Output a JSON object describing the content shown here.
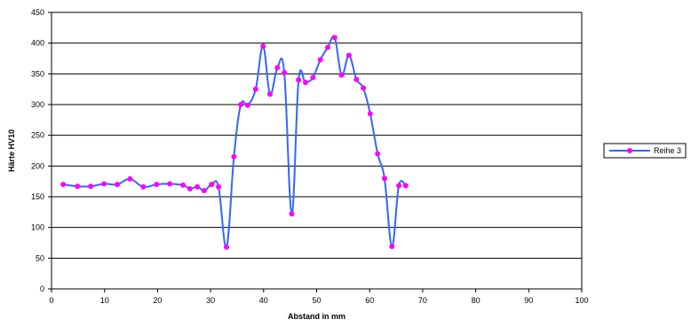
{
  "chart_data": {
    "type": "line",
    "title": "",
    "xlabel": "Abstand in mm",
    "ylabel": "Härte HV10",
    "xlim": [
      0,
      100
    ],
    "ylim": [
      0,
      450
    ],
    "xticks": [
      0,
      10,
      20,
      30,
      40,
      50,
      60,
      70,
      80,
      90,
      100
    ],
    "yticks": [
      0,
      50,
      100,
      150,
      200,
      250,
      300,
      350,
      400,
      450
    ],
    "grid": "horizontal",
    "legend_position": "right",
    "series": [
      {
        "name": "Reihe 3",
        "color": "#3366ff",
        "marker_color": "#ff00ff",
        "points": [
          [
            2.2,
            170
          ],
          [
            4.9,
            167
          ],
          [
            7.4,
            167
          ],
          [
            9.9,
            171
          ],
          [
            12.4,
            170
          ],
          [
            14.8,
            179
          ],
          [
            17.3,
            166
          ],
          [
            19.8,
            170
          ],
          [
            22.3,
            171
          ],
          [
            24.8,
            169
          ],
          [
            26.1,
            163
          ],
          [
            27.5,
            166
          ],
          [
            28.8,
            160
          ],
          [
            30.2,
            170
          ],
          [
            31.5,
            166
          ],
          [
            33.0,
            68
          ],
          [
            34.4,
            215
          ],
          [
            35.7,
            300
          ],
          [
            37.0,
            299
          ],
          [
            38.5,
            325
          ],
          [
            39.9,
            395
          ],
          [
            41.2,
            317
          ],
          [
            42.6,
            360
          ],
          [
            43.9,
            352
          ],
          [
            45.3,
            122
          ],
          [
            46.6,
            340
          ],
          [
            47.9,
            336
          ],
          [
            49.3,
            344
          ],
          [
            50.7,
            373
          ],
          [
            52.1,
            393
          ],
          [
            53.4,
            409
          ],
          [
            54.7,
            348
          ],
          [
            56.1,
            380
          ],
          [
            57.5,
            341
          ],
          [
            58.8,
            327
          ],
          [
            60.1,
            285
          ],
          [
            61.5,
            220
          ],
          [
            62.8,
            180
          ],
          [
            64.2,
            69
          ],
          [
            65.5,
            168
          ],
          [
            66.8,
            168
          ]
        ]
      }
    ]
  }
}
